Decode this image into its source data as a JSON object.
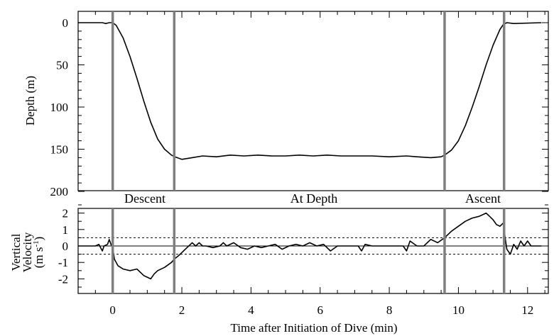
{
  "chart_data": {
    "type": "line",
    "xlabel": "Time after Initiation of Dive (min)",
    "xlim": [
      -1,
      12.6
    ],
    "xticks": [
      "0",
      "2",
      "4",
      "6",
      "8",
      "10",
      "12"
    ],
    "phase_boundaries": [
      0,
      1.78,
      9.6,
      11.32
    ],
    "phases": [
      "Descent",
      "At Depth",
      "Ascent"
    ],
    "colors": {
      "trace": "#000000",
      "phase_marker": "#7f7f7f"
    },
    "panels": [
      {
        "name": "depth",
        "ylabel": "Depth (m)",
        "ylim": [
          0,
          200
        ],
        "y_inverted": true,
        "yticks": [
          "0",
          "50",
          "100",
          "150",
          "200"
        ],
        "x": [
          -1.0,
          -0.3,
          -0.2,
          -0.1,
          0.0,
          0.1,
          0.3,
          0.5,
          0.7,
          0.9,
          1.1,
          1.3,
          1.5,
          1.7,
          1.8,
          2.0,
          2.3,
          2.6,
          3.0,
          3.4,
          3.8,
          4.2,
          4.6,
          5.0,
          5.4,
          5.8,
          6.2,
          6.6,
          7.0,
          7.5,
          8.0,
          8.5,
          8.8,
          9.2,
          9.5,
          9.6,
          9.8,
          10.0,
          10.2,
          10.4,
          10.6,
          10.8,
          11.0,
          11.2,
          11.3,
          11.4,
          11.6,
          12.4
        ],
        "y": [
          0,
          0,
          1,
          0,
          0,
          3,
          18,
          40,
          66,
          93,
          118,
          138,
          150,
          157,
          159,
          162,
          160,
          158,
          159,
          157,
          158,
          157,
          158,
          158,
          157,
          158,
          157,
          158,
          158,
          158,
          159,
          158,
          159,
          160,
          159,
          157,
          151,
          140,
          122,
          100,
          76,
          50,
          27,
          8,
          2,
          0,
          1,
          0
        ]
      },
      {
        "name": "velocity",
        "ylabel": "Vertical Velocity (m s-1)",
        "ylabel_lines": [
          "Vertical",
          "Velocity",
          "(m s",
          "-1",
          ")"
        ],
        "ylim": [
          -2.8,
          2.6
        ],
        "yticks": [
          "2",
          "1",
          "0",
          "-1",
          "-2"
        ],
        "thresholds": [
          0.5,
          -0.5
        ],
        "x": [
          -1.0,
          -0.5,
          -0.4,
          -0.3,
          -0.25,
          -0.15,
          -0.1,
          -0.05,
          0.0,
          0.05,
          0.15,
          0.3,
          0.5,
          0.7,
          0.9,
          1.0,
          1.1,
          1.2,
          1.3,
          1.5,
          1.7,
          1.78,
          1.9,
          2.1,
          2.3,
          2.4,
          2.5,
          2.6,
          2.7,
          2.9,
          3.1,
          3.2,
          3.3,
          3.5,
          3.7,
          3.9,
          4.1,
          4.3,
          4.5,
          4.7,
          4.9,
          5.1,
          5.3,
          5.5,
          5.7,
          5.9,
          6.1,
          6.3,
          6.5,
          6.7,
          6.9,
          7.1,
          7.2,
          7.3,
          7.5,
          7.8,
          8.0,
          8.2,
          8.4,
          8.5,
          8.6,
          8.8,
          9.0,
          9.2,
          9.4,
          9.6,
          9.8,
          10.0,
          10.2,
          10.4,
          10.6,
          10.8,
          10.9,
          11.0,
          11.1,
          11.2,
          11.3,
          11.35,
          11.4,
          11.5,
          11.6,
          11.7,
          11.8,
          11.9,
          12.0,
          12.1,
          12.4
        ],
        "y": [
          0.0,
          0.0,
          0.1,
          -0.3,
          0.0,
          0.1,
          0.4,
          0.1,
          -0.1,
          -0.8,
          -1.2,
          -1.4,
          -1.5,
          -1.4,
          -1.8,
          -1.9,
          -2.0,
          -1.7,
          -1.5,
          -1.3,
          -1.0,
          -0.8,
          -0.6,
          -0.2,
          0.2,
          0.0,
          0.2,
          0.0,
          0.0,
          -0.1,
          0.0,
          0.2,
          0.0,
          0.2,
          -0.1,
          -0.2,
          0.0,
          -0.1,
          0.0,
          0.1,
          -0.2,
          0.0,
          0.1,
          0.0,
          0.2,
          0.0,
          0.1,
          -0.3,
          0.0,
          0.0,
          0.0,
          0.0,
          -0.3,
          0.1,
          0.0,
          0.0,
          0.0,
          0.0,
          0.0,
          -0.3,
          0.3,
          0.0,
          0.0,
          0.4,
          0.2,
          0.5,
          0.9,
          1.2,
          1.5,
          1.7,
          1.8,
          2.0,
          1.8,
          1.6,
          1.3,
          1.2,
          1.4,
          0.5,
          -0.2,
          -0.5,
          0.1,
          -0.2,
          0.3,
          0.0,
          0.3,
          0.0,
          0.0
        ]
      }
    ]
  }
}
